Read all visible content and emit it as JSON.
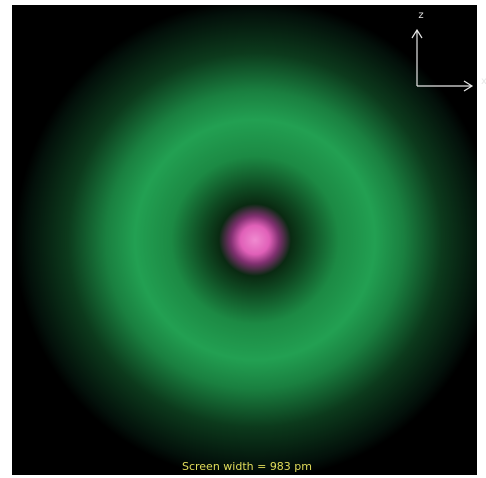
{
  "axes": {
    "vertical": "z",
    "horizontal": "x"
  },
  "caption": "Screen width = 983 pm"
}
